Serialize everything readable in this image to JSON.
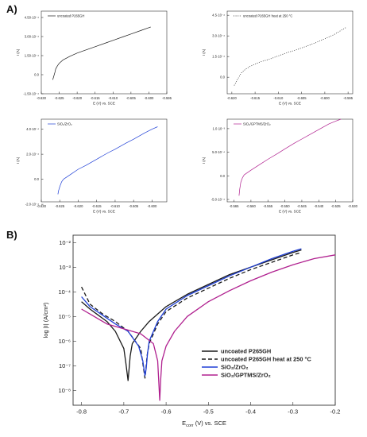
{
  "figure": {
    "panel_a_label": "A)",
    "panel_b_label": "B)"
  },
  "colors": {
    "black": "#1a1a1a",
    "blue": "#1f3fd6",
    "magenta": "#b0208f",
    "axis": "#333333"
  },
  "chart_data": [
    {
      "type": "line",
      "xlabel": "E (V) vs. SCE",
      "ylabel": "I (A)",
      "xlim": [
        -0.63,
        -0.595
      ],
      "ylim": [
        -0.00015,
        0.0005
      ],
      "xticks": [
        -0.63,
        -0.625,
        -0.62,
        -0.615,
        -0.61,
        -0.605,
        -0.6,
        -0.595
      ],
      "xtick_labels": [
        "-0.630",
        "-0.625",
        "-0.620",
        "-0.615",
        "-0.610",
        "-0.605",
        "-0.600",
        "-0.595"
      ],
      "yticks": [
        -0.00015,
        0,
        0.00015,
        0.0003,
        0.00045
      ],
      "ytick_labels": [
        "-1.50·10⁻⁴",
        "0.0",
        "1.50·10⁻⁴",
        "3.00·10⁻⁴",
        "4.50·10⁻⁴"
      ],
      "legend": "top-left",
      "series": [
        {
          "name": "uncoated P265GH",
          "style": "solid",
          "color": "#1a1a1a",
          "x": [
            -0.6268,
            -0.6265,
            -0.6262,
            -0.626,
            -0.6255,
            -0.625,
            -0.624,
            -0.623,
            -0.622,
            -0.62,
            -0.618,
            -0.615,
            -0.612,
            -0.61,
            -0.607,
            -0.605,
            -0.602,
            -0.6,
            -0.5995
          ],
          "y": [
            -4e-05,
            -1e-05,
            2e-05,
            4.5e-05,
            7e-05,
            9e-05,
            0.000115,
            0.00013,
            0.000145,
            0.00017,
            0.00019,
            0.00022,
            0.00025,
            0.00027,
            0.0003,
            0.00032,
            0.00035,
            0.00037,
            0.000375
          ]
        }
      ]
    },
    {
      "type": "line",
      "xlabel": "E (V) vs. SCE",
      "ylabel": "I (A)",
      "xlim": [
        -0.621,
        -0.594
      ],
      "ylim": [
        -0.00012,
        0.00048
      ],
      "xticks": [
        -0.62,
        -0.615,
        -0.61,
        -0.605,
        -0.6,
        -0.595
      ],
      "xtick_labels": [
        "-0.620",
        "-0.615",
        "-0.610",
        "-0.605",
        "-0.600",
        "-0.595"
      ],
      "yticks": [
        0,
        0.00015,
        0.0003,
        0.00045
      ],
      "ytick_labels": [
        "0.0",
        "1.5·10⁻⁴",
        "3.0·10⁻⁴",
        "4.5·10⁻⁴"
      ],
      "legend": "top-left",
      "series": [
        {
          "name": "uncoated P265GH heat at 250 °C",
          "style": "dotted",
          "color": "#1a1a1a",
          "x": [
            -0.6195,
            -0.619,
            -0.6185,
            -0.618,
            -0.617,
            -0.616,
            -0.614,
            -0.612,
            -0.61,
            -0.608,
            -0.606,
            -0.604,
            -0.602,
            -0.6,
            -0.598,
            -0.596,
            -0.5955
          ],
          "y": [
            -6e-05,
            -3e-05,
            0.0,
            3e-05,
            6e-05,
            8e-05,
            0.00011,
            0.00013,
            0.000155,
            0.00018,
            0.0002,
            0.000225,
            0.00025,
            0.00028,
            0.00031,
            0.00035,
            0.00036
          ]
        }
      ]
    },
    {
      "type": "line",
      "xlabel": "E (V) vs. SCE",
      "ylabel": "I (A)",
      "xlim": [
        -0.63,
        -0.596
      ],
      "ylim": [
        -0.00018,
        0.00048
      ],
      "xticks": [
        -0.63,
        -0.625,
        -0.62,
        -0.615,
        -0.61,
        -0.605,
        -0.6
      ],
      "xtick_labels": [
        "-0.630",
        "-0.625",
        "-0.620",
        "-0.615",
        "-0.610",
        "-0.605",
        "-0.600"
      ],
      "yticks": [
        -0.0002,
        0,
        0.0002,
        0.0004
      ],
      "ytick_labels": [
        "-2.0·10⁻⁴",
        "0.0",
        "2.0·10⁻⁴",
        "4.0·10⁻⁴"
      ],
      "legend": "top-left",
      "series": [
        {
          "name": "SiO₂/ZrO₂",
          "style": "solid",
          "color": "#1f3fd6",
          "x": [
            -0.6255,
            -0.6253,
            -0.625,
            -0.6245,
            -0.624,
            -0.622,
            -0.62,
            -0.618,
            -0.615,
            -0.612,
            -0.61,
            -0.607,
            -0.605,
            -0.602,
            -0.6,
            -0.5985
          ],
          "y": [
            -0.00012,
            -9e-05,
            -6e-05,
            -2e-05,
            0.0,
            4e-05,
            8e-05,
            0.00011,
            0.00016,
            0.00021,
            0.00024,
            0.00029,
            0.00032,
            0.00037,
            0.0004,
            0.00042
          ]
        }
      ]
    },
    {
      "type": "line",
      "xlabel": "E (V) vs. SCE",
      "ylabel": "I (A)",
      "xlim": [
        -0.567,
        -0.53
      ],
      "ylim": [
        -0.00055,
        0.0012
      ],
      "xticks": [
        -0.565,
        -0.56,
        -0.555,
        -0.55,
        -0.545,
        -0.54,
        -0.535,
        -0.53
      ],
      "xtick_labels": [
        "-0.565",
        "-0.560",
        "-0.555",
        "-0.550",
        "-0.545",
        "-0.540",
        "-0.535",
        "-0.530"
      ],
      "yticks": [
        -0.0005,
        0,
        0.0005,
        0.001
      ],
      "ytick_labels": [
        "-5.0·10⁻⁴",
        "0.0",
        "5.0·10⁻⁴",
        "1.0·10⁻³"
      ],
      "legend": "top-left",
      "series": [
        {
          "name": "SiO₂/GPTMS/ZrO₂",
          "style": "solid",
          "color": "#b0208f",
          "x": [
            -0.5635,
            -0.5633,
            -0.563,
            -0.5625,
            -0.562,
            -0.56,
            -0.557,
            -0.555,
            -0.552,
            -0.55,
            -0.547,
            -0.545,
            -0.542,
            -0.54,
            -0.537,
            -0.535,
            -0.5335
          ],
          "y": [
            -0.00042,
            -0.00028,
            -0.00014,
            -4e-05,
            2e-05,
            0.00012,
            0.00026,
            0.00035,
            0.00048,
            0.00057,
            0.0007,
            0.00078,
            0.0009,
            0.00098,
            0.0011,
            0.00116,
            0.0012
          ]
        }
      ]
    },
    {
      "type": "line",
      "xlabel": "E",
      "xlabel_sub": "corr",
      "xlabel_suffix": " (V) vs. SCE",
      "ylabel": "log |I| (A/cm²)",
      "xlim": [
        -0.82,
        -0.2
      ],
      "ylim": [
        -8.6,
        -1.7
      ],
      "y_scale": "log",
      "xticks": [
        -0.8,
        -0.7,
        -0.6,
        -0.5,
        -0.4,
        -0.3,
        -0.2
      ],
      "xtick_labels": [
        "-0.8",
        "-0.7",
        "-0.6",
        "-0.5",
        "-0.4",
        "-0.3",
        "-0.2"
      ],
      "yticks": [
        -8,
        -7,
        -6,
        -5,
        -4,
        -3,
        -2
      ],
      "ytick_labels": [
        "10⁻⁸",
        "10⁻⁷",
        "10⁻⁶",
        "10⁻⁵",
        "10⁻⁴",
        "10⁻³",
        "10⁻²"
      ],
      "legend": "bottom-right",
      "series": [
        {
          "name": "uncoated P265GH",
          "style": "solid",
          "color": "#1a1a1a",
          "x": [
            -0.8,
            -0.78,
            -0.76,
            -0.74,
            -0.72,
            -0.7,
            -0.695,
            -0.69,
            -0.688,
            -0.685,
            -0.68,
            -0.66,
            -0.64,
            -0.6,
            -0.55,
            -0.5,
            -0.45,
            -0.4,
            -0.35,
            -0.3,
            -0.28
          ],
          "y": [
            -4.4,
            -4.7,
            -4.95,
            -5.2,
            -5.6,
            -6.3,
            -6.9,
            -7.6,
            -7.2,
            -6.6,
            -6.1,
            -5.6,
            -5.2,
            -4.6,
            -4.1,
            -3.7,
            -3.3,
            -3.0,
            -2.7,
            -2.4,
            -2.3
          ]
        },
        {
          "name": "uncoated P265GH heat at 250 °C",
          "style": "dashed",
          "color": "#1a1a1a",
          "x": [
            -0.8,
            -0.78,
            -0.75,
            -0.72,
            -0.69,
            -0.66,
            -0.655,
            -0.65,
            -0.648,
            -0.645,
            -0.64,
            -0.62,
            -0.6,
            -0.55,
            -0.5,
            -0.45,
            -0.4,
            -0.35,
            -0.3,
            -0.28
          ],
          "y": [
            -3.8,
            -4.5,
            -4.9,
            -5.2,
            -5.6,
            -6.3,
            -6.9,
            -7.5,
            -7.2,
            -6.6,
            -6.1,
            -5.3,
            -4.8,
            -4.25,
            -3.85,
            -3.45,
            -3.1,
            -2.8,
            -2.5,
            -2.4
          ]
        },
        {
          "name": "SiO₂/ZrO₂",
          "style": "solid",
          "color": "#1f3fd6",
          "x": [
            -0.8,
            -0.78,
            -0.75,
            -0.72,
            -0.69,
            -0.665,
            -0.655,
            -0.65,
            -0.647,
            -0.644,
            -0.64,
            -0.62,
            -0.6,
            -0.55,
            -0.5,
            -0.45,
            -0.4,
            -0.35,
            -0.3,
            -0.28
          ],
          "y": [
            -4.2,
            -4.6,
            -4.95,
            -5.3,
            -5.6,
            -6.2,
            -6.8,
            -7.4,
            -7.1,
            -6.5,
            -6.0,
            -5.2,
            -4.7,
            -4.15,
            -3.75,
            -3.35,
            -3.0,
            -2.65,
            -2.35,
            -2.25
          ]
        },
        {
          "name": "SiO₂/GPTMS/ZrO₂",
          "style": "solid",
          "color": "#b0208f",
          "x": [
            -0.8,
            -0.77,
            -0.74,
            -0.7,
            -0.66,
            -0.63,
            -0.62,
            -0.615,
            -0.613,
            -0.61,
            -0.6,
            -0.58,
            -0.55,
            -0.5,
            -0.45,
            -0.4,
            -0.35,
            -0.3,
            -0.25,
            -0.2
          ],
          "y": [
            -4.7,
            -5.0,
            -5.3,
            -5.5,
            -5.7,
            -6.1,
            -6.8,
            -8.4,
            -7.6,
            -6.8,
            -6.2,
            -5.6,
            -5.0,
            -4.4,
            -3.95,
            -3.55,
            -3.2,
            -2.9,
            -2.65,
            -2.5
          ]
        }
      ]
    }
  ]
}
